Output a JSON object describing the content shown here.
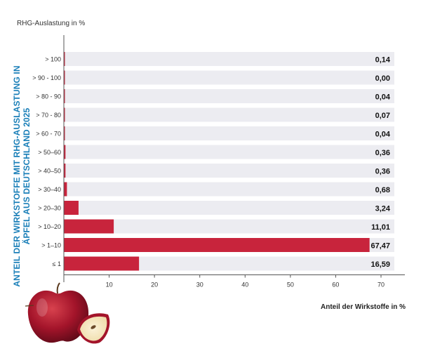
{
  "labels": {
    "top_axis_label": "RHG-Auslastung in %",
    "side_title": "ANTEIL DER WIRKSTOFFE MIT RHG-AUSLASTUNG IN ÄPFEL AUS DEUTSCHLAND 2025",
    "x_axis_title": "Anteil der Wirkstoffe in %"
  },
  "chart_data": {
    "type": "bar",
    "orientation": "horizontal",
    "title": "ANTEIL DER WIRKSTOFFE MIT RHG-AUSLASTUNG IN ÄPFEL AUS DEUTSCHLAND 2025",
    "xlabel": "Anteil der Wirkstoffe in %",
    "ylabel": "RHG-Auslastung in %",
    "categories": [
      "> 100",
      "> 90 - 100",
      "> 80 - 90",
      "> 70 - 80",
      "> 60 - 70",
      "> 50–60",
      "> 40–50",
      "> 30–40",
      "> 20–30",
      "> 10–20",
      "> 1–10",
      "≤ 1"
    ],
    "values": [
      0.14,
      0.0,
      0.04,
      0.07,
      0.04,
      0.36,
      0.36,
      0.68,
      3.24,
      11.01,
      67.47,
      16.59
    ],
    "value_labels": [
      "0,14",
      "0,00",
      "0,04",
      "0,07",
      "0,04",
      "0,36",
      "0,36",
      "0,68",
      "3,24",
      "11,01",
      "67,47",
      "16,59"
    ],
    "xlim": [
      0,
      70
    ],
    "xticks": [
      10,
      20,
      30,
      40,
      50,
      60,
      70
    ],
    "grid": false,
    "bar_color": "#c8243c",
    "track_color": "#ececf1"
  },
  "colors": {
    "title": "#1a7fb8",
    "axis": "#555555"
  },
  "decoration": {
    "image": "apple-illustration"
  }
}
